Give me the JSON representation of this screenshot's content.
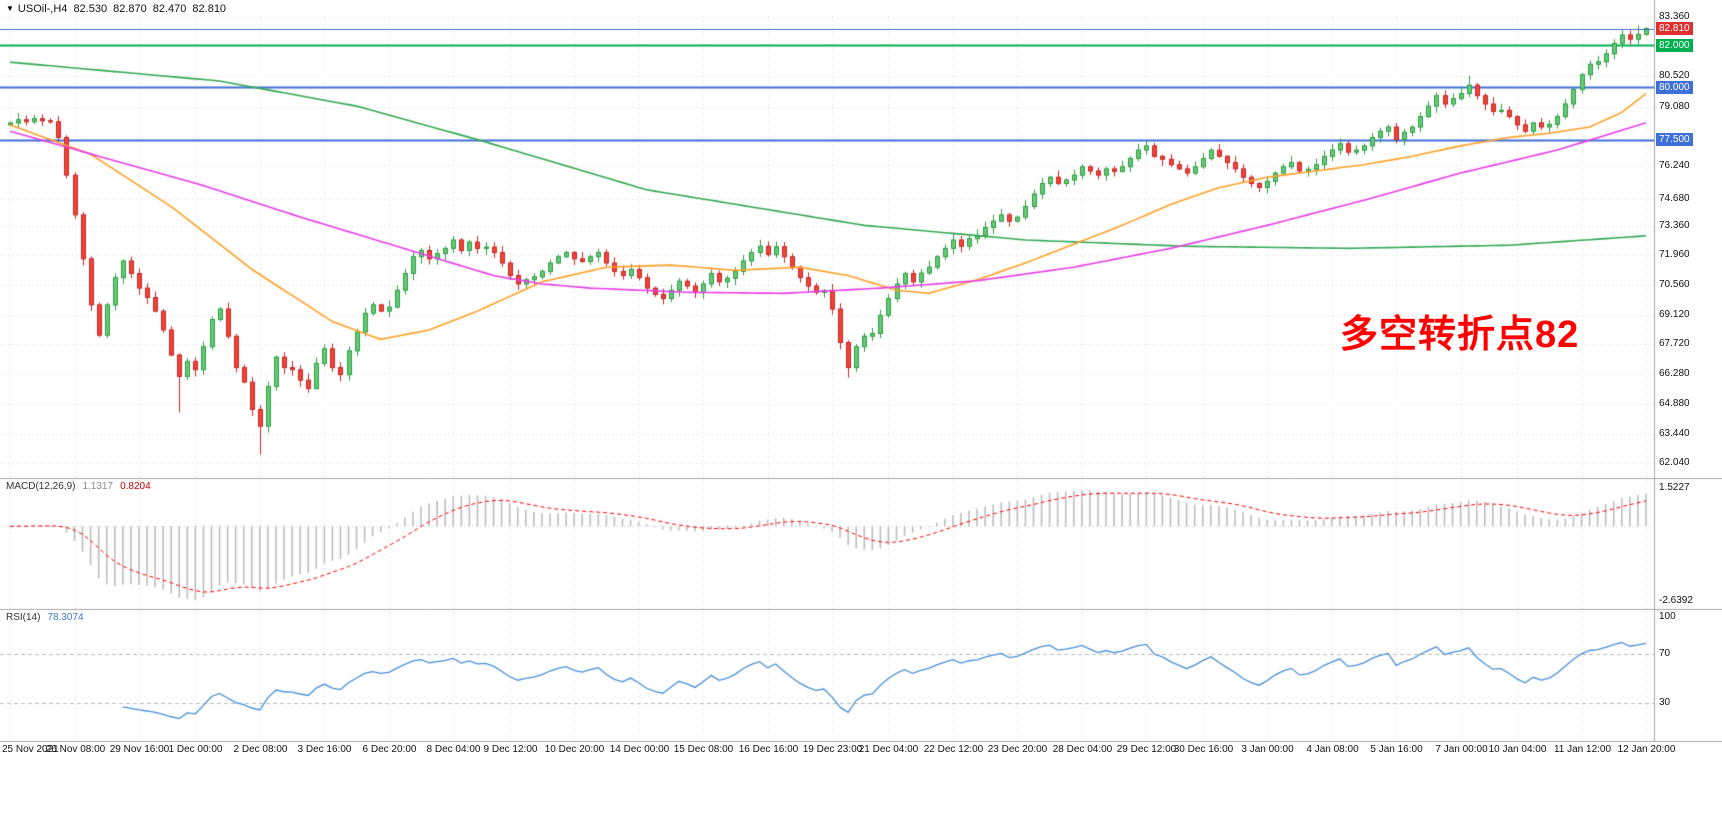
{
  "header": {
    "collapse_icon": "▼",
    "symbol_period": "USOil-,H4",
    "bar_open": "82.530",
    "bar_high": "82.870",
    "bar_low": "82.470",
    "bar_close": "82.810"
  },
  "annotation": {
    "text": "多空转折点82",
    "color": "#FF0000"
  },
  "chart_data": {
    "type": "candlestick",
    "symbol": "USOil",
    "timeframe": "H4",
    "title": "USOil-,H4",
    "x_labels": [
      "25 Nov 2021",
      "26 Nov 08:00",
      "29 Nov 16:00",
      "1 Dec 00:00",
      "2 Dec 08:00",
      "3 Dec 16:00",
      "6 Dec 20:00",
      "8 Dec 04:00",
      "9 Dec 12:00",
      "10 Dec 20:00",
      "14 Dec 00:00",
      "15 Dec 08:00",
      "16 Dec 16:00",
      "19 Dec 23:00",
      "21 Dec 04:00",
      "22 Dec 12:00",
      "23 Dec 20:00",
      "28 Dec 04:00",
      "29 Dec 12:00",
      "30 Dec 16:00",
      "3 Jan 00:00",
      "4 Jan 08:00",
      "5 Jan 16:00",
      "7 Jan 00:00",
      "10 Jan 04:00",
      "11 Jan 12:00",
      "12 Jan 20:00"
    ],
    "price_axis": {
      "ticks": [
        "83.360",
        "80.520",
        "79.080",
        "76.240",
        "74.680",
        "73.360",
        "71.960",
        "70.560",
        "69.120",
        "67.720",
        "66.280",
        "64.880",
        "63.440",
        "62.040"
      ],
      "tagged": [
        {
          "text": "82.810",
          "bg": "#E03030",
          "role": "current-price"
        },
        {
          "text": "82.000",
          "bg": "#00B050",
          "role": "hline"
        },
        {
          "text": "80.000",
          "bg": "#3F6FD8",
          "role": "hline"
        },
        {
          "text": "77.500",
          "bg": "#3F6FD8",
          "role": "hline"
        }
      ]
    },
    "horizontal_lines": [
      {
        "price": 82.0,
        "color": "#00B050",
        "width": 2
      },
      {
        "price": 80.0,
        "color": "#3F6FD8",
        "width": 2
      },
      {
        "price": 77.5,
        "color": "#3F6FD8",
        "width": 2
      }
    ],
    "current_price_line": {
      "price": 82.81,
      "color": "#4472C4"
    },
    "candles": {
      "first_open": 78.2,
      "up_fill": "#66C878",
      "up_border": "#2F9E43",
      "down_fill": "#F04438",
      "down_border": "#C62828",
      "closes": [
        78.3,
        78.45,
        78.35,
        78.5,
        78.4,
        78.35,
        77.6,
        75.8,
        73.9,
        71.8,
        69.6,
        68.15,
        69.6,
        70.9,
        71.7,
        71.1,
        70.4,
        69.95,
        69.3,
        68.4,
        67.2,
        66.18,
        66.9,
        66.5,
        67.6,
        68.9,
        69.4,
        68.1,
        66.6,
        65.91,
        64.6,
        63.8,
        65.7,
        67.1,
        66.6,
        66.5,
        66.0,
        65.6,
        66.8,
        67.5,
        66.6,
        66.26,
        67.4,
        68.3,
        69.2,
        69.6,
        69.3,
        69.49,
        70.3,
        71.1,
        71.9,
        72.2,
        71.8,
        72.05,
        72.3,
        72.7,
        72.2,
        72.6,
        72.3,
        72.36,
        72.1,
        71.6,
        71.0,
        70.6,
        70.8,
        70.94,
        71.2,
        71.6,
        71.9,
        72.1,
        71.8,
        71.67,
        71.9,
        72.1,
        71.6,
        71.2,
        71.0,
        71.29,
        70.9,
        70.4,
        70.1,
        69.9,
        70.3,
        70.73,
        70.5,
        70.2,
        70.6,
        71.1,
        70.7,
        70.87,
        71.2,
        71.7,
        72.1,
        72.4,
        72.0,
        72.38,
        71.9,
        71.4,
        70.9,
        70.5,
        70.2,
        70.29,
        69.4,
        67.8,
        66.6,
        67.6,
        68.1,
        68.23,
        69.1,
        69.9,
        70.6,
        71.1,
        70.7,
        71.12,
        71.4,
        71.9,
        72.3,
        72.7,
        72.4,
        72.76,
        72.9,
        73.3,
        73.6,
        73.9,
        73.6,
        73.79,
        74.3,
        74.9,
        75.4,
        75.7,
        75.4,
        75.57,
        75.8,
        76.2,
        76.0,
        75.8,
        76.1,
        75.98,
        76.2,
        76.6,
        77.0,
        77.2,
        76.7,
        76.56,
        76.3,
        76.1,
        75.9,
        76.2,
        76.6,
        76.99,
        76.7,
        76.4,
        76.1,
        75.7,
        75.4,
        75.21,
        75.5,
        75.9,
        76.2,
        76.4,
        76.0,
        76.08,
        76.3,
        76.7,
        77.0,
        77.3,
        76.9,
        76.99,
        77.2,
        77.6,
        77.9,
        78.1,
        77.5,
        77.85,
        78.1,
        78.6,
        79.1,
        79.6,
        79.2,
        79.46,
        79.7,
        80.1,
        79.6,
        79.2,
        78.85,
        78.9,
        78.6,
        78.2,
        77.9,
        78.3,
        78.1,
        78.23,
        78.6,
        79.2,
        79.9,
        80.6,
        81.1,
        81.22,
        81.6,
        82.1,
        82.5,
        82.3,
        82.53,
        82.81
      ],
      "special_highs": {
        "181": 80.55,
        "202": 82.95,
        "203": 82.87
      },
      "special_lows": {
        "21": 64.45,
        "31": 62.45,
        "104": 66.12,
        "203": 82.47
      }
    },
    "ma_lines": [
      {
        "name": "ma-green",
        "color": "#33A852",
        "points": [
          [
            0,
            81.2
          ],
          [
            26,
            80.3
          ],
          [
            43,
            79.1
          ],
          [
            58,
            77.5
          ],
          [
            79,
            75.1
          ],
          [
            106,
            73.4
          ],
          [
            126,
            72.7
          ],
          [
            146,
            72.4
          ],
          [
            166,
            72.3
          ],
          [
            186,
            72.45
          ],
          [
            203,
            72.9
          ]
        ]
      },
      {
        "name": "ma-orange",
        "color": "#FFA024",
        "points": [
          [
            0,
            78.2
          ],
          [
            10,
            76.8
          ],
          [
            20,
            74.3
          ],
          [
            30,
            71.3
          ],
          [
            40,
            68.8
          ],
          [
            46,
            67.95
          ],
          [
            52,
            68.4
          ],
          [
            58,
            69.3
          ],
          [
            66,
            70.7
          ],
          [
            74,
            71.4
          ],
          [
            82,
            71.5
          ],
          [
            90,
            71.25
          ],
          [
            98,
            71.4
          ],
          [
            104,
            71.0
          ],
          [
            110,
            70.3
          ],
          [
            114,
            70.15
          ],
          [
            120,
            70.8
          ],
          [
            126,
            71.6
          ],
          [
            132,
            72.5
          ],
          [
            138,
            73.4
          ],
          [
            144,
            74.4
          ],
          [
            150,
            75.2
          ],
          [
            156,
            75.7
          ],
          [
            162,
            76.0
          ],
          [
            168,
            76.3
          ],
          [
            174,
            76.7
          ],
          [
            180,
            77.2
          ],
          [
            186,
            77.6
          ],
          [
            191,
            77.8
          ],
          [
            196,
            78.1
          ],
          [
            200,
            78.8
          ],
          [
            203,
            79.7
          ]
        ]
      },
      {
        "name": "ma-magenta",
        "color": "#E93EE9",
        "points": [
          [
            0,
            77.9
          ],
          [
            12,
            76.6
          ],
          [
            24,
            75.3
          ],
          [
            36,
            73.8
          ],
          [
            48,
            72.4
          ],
          [
            60,
            71.0
          ],
          [
            66,
            70.6
          ],
          [
            72,
            70.4
          ],
          [
            84,
            70.2
          ],
          [
            96,
            70.15
          ],
          [
            108,
            70.4
          ],
          [
            120,
            70.75
          ],
          [
            132,
            71.4
          ],
          [
            144,
            72.3
          ],
          [
            156,
            73.4
          ],
          [
            168,
            74.6
          ],
          [
            180,
            75.9
          ],
          [
            192,
            77.0
          ],
          [
            203,
            78.3
          ]
        ]
      }
    ],
    "indicators": {
      "macd": {
        "label": "MACD(12,26,9)",
        "main_value": "1.1317",
        "signal_value": "0.8204",
        "fast": 12,
        "slow": 26,
        "signal": 9,
        "axis_top": "1.5227",
        "axis_bottom": "-2.6392",
        "histogram_color": "#BDBDBD",
        "signal_color": "#FF0000"
      },
      "rsi": {
        "label": "RSI(14)",
        "value": "78.3074",
        "period": 14,
        "levels": [
          70,
          30
        ],
        "axis_labels": [
          "100",
          "70",
          "30"
        ],
        "color": "#4A90D9"
      }
    }
  }
}
